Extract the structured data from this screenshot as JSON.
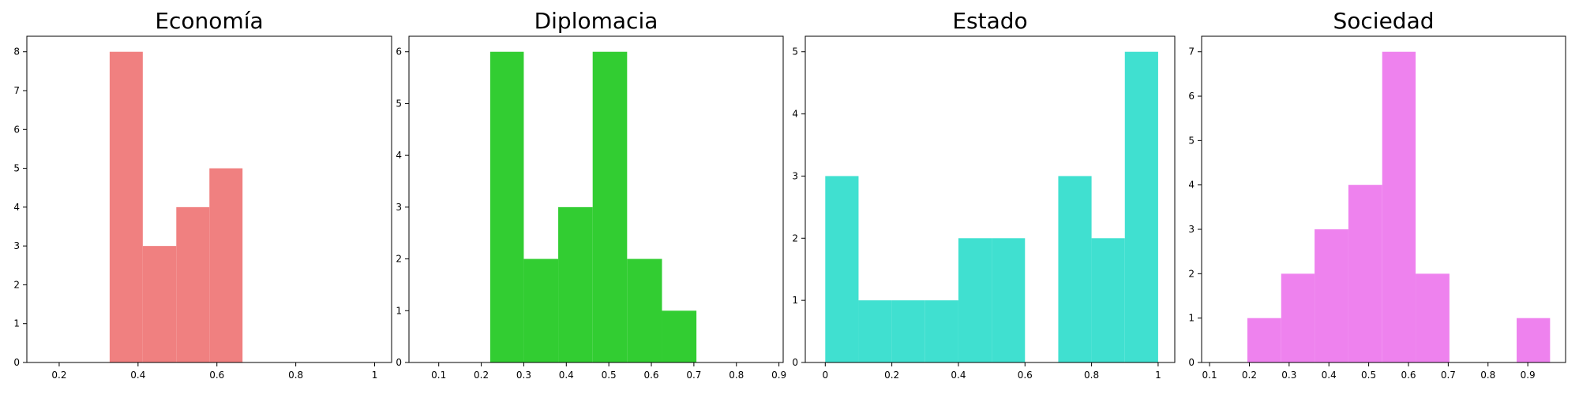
{
  "chart_data": [
    {
      "type": "histogram",
      "title": "Economía",
      "color": "#f08080",
      "bins": [
        0.328,
        0.412,
        0.497,
        0.581,
        0.665
      ],
      "values": [
        8,
        3,
        4,
        5
      ],
      "xlim": [
        0.118,
        1.043
      ],
      "xticks": [
        0.2,
        0.4,
        0.6,
        0.8,
        1.0
      ],
      "ylim": [
        0,
        8.4
      ],
      "yticks": [
        0,
        1,
        2,
        3,
        4,
        5,
        6,
        7,
        8
      ]
    },
    {
      "type": "histogram",
      "title": "Diplomacia",
      "color": "#32cd32",
      "bins": [
        0.221,
        0.3,
        0.381,
        0.462,
        0.543,
        0.625,
        0.706
      ],
      "values": [
        6,
        2,
        3,
        6,
        2,
        1
      ],
      "xlim": [
        0.03,
        0.91
      ],
      "xticks": [
        0.1,
        0.2,
        0.3,
        0.4,
        0.5,
        0.6,
        0.7,
        0.8,
        0.9
      ],
      "ylim": [
        0,
        6.3
      ],
      "yticks": [
        0,
        1,
        2,
        3,
        4,
        5,
        6
      ]
    },
    {
      "type": "histogram",
      "title": "Estado",
      "color": "#40e0d0",
      "bins": [
        0,
        0.1,
        0.2,
        0.3,
        0.4,
        0.5,
        0.6,
        0.7,
        0.8,
        0.9,
        1.0
      ],
      "values": [
        3,
        1,
        1,
        1,
        2,
        2,
        0,
        3,
        2,
        5
      ],
      "xlim": [
        -0.06,
        1.05
      ],
      "xticks": [
        0,
        0.2,
        0.4,
        0.6,
        0.8,
        1.0
      ],
      "ylim": [
        0,
        5.25
      ],
      "yticks": [
        0,
        1,
        2,
        3,
        4,
        5
      ]
    },
    {
      "type": "histogram",
      "title": "Sociedad",
      "color": "#ee82ee",
      "bins": [
        0.195,
        0.28,
        0.364,
        0.449,
        0.534,
        0.618,
        0.703,
        0.787,
        0.872,
        0.956
      ],
      "values": [
        1,
        2,
        3,
        4,
        7,
        2,
        0,
        0,
        1
      ],
      "xlim": [
        0.08,
        0.995
      ],
      "xticks": [
        0.1,
        0.2,
        0.3,
        0.4,
        0.5,
        0.6,
        0.7,
        0.8,
        0.9
      ],
      "ylim": [
        0,
        7.35
      ],
      "yticks": [
        0,
        1,
        2,
        3,
        4,
        5,
        6,
        7
      ]
    }
  ]
}
